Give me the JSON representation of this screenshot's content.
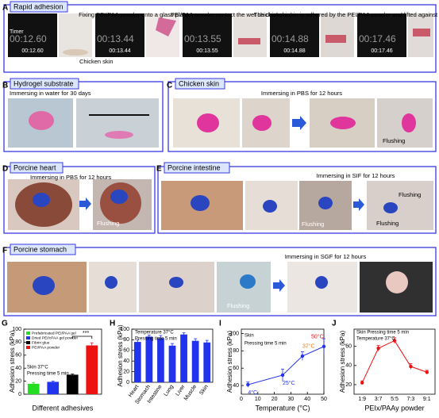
{
  "panel_a": {
    "label": "A",
    "title": "Rapid adhesion",
    "caption_1": "Fixing PEI/PAA powder onto a glass plate",
    "caption_2": "PEI/PAA powder contact the wet chicken skin",
    "caption_3": "The chicken skin is adhered by the PEI/PAA powder and lifted against its own weight",
    "timer_label": "Timer",
    "skin_label": "Chicken skin",
    "times": [
      "00:12.60",
      "00:13.44",
      "00:13.55",
      "00:14.88",
      "00:17.46"
    ]
  },
  "panel_b": {
    "label": "B",
    "title": "Hydrogel  substrate",
    "caption": "Immersing in water for 30 days"
  },
  "panel_c": {
    "label": "C",
    "title": "Chicken skin",
    "caption": "Immersing in PBS for 12 hours",
    "flushing": "Flushing"
  },
  "panel_d": {
    "label": "D",
    "title": "Porcine heart",
    "caption": "Immersing in PBS for 12 hours",
    "flushing": "Flushing"
  },
  "panel_e": {
    "label": "E",
    "title": "Porcine intestine",
    "caption": "Immersing in SIF for 12 hours",
    "flushing": [
      "Flushing",
      "Flushing",
      "Flushing"
    ]
  },
  "panel_f": {
    "label": "F",
    "title": "Porcine stomach",
    "caption": "Immersing in SGF for 12 hours",
    "flushing": "Flushing"
  },
  "chart_data": [
    {
      "type": "bar",
      "label": "G",
      "ylabel": "Adhesion stress (kPa)",
      "xlabel": "Different adhesives",
      "legend": [
        "Prefabricated PEI/PAA gel",
        "Dried PEI/cPAA gel powder",
        "Fibrin glue",
        "PEI/PAA powder"
      ],
      "colors": [
        "#22dd22",
        "#2233ee",
        "#000000",
        "#ee1111"
      ],
      "values": [
        16,
        19,
        30,
        75
      ],
      "errors": [
        2,
        1,
        1,
        4
      ],
      "ylim": [
        0,
        100
      ],
      "yticks": [
        0,
        20,
        40,
        60,
        80,
        100
      ],
      "annotations": [
        "Skin   37°C",
        "Pressing time 5 min",
        "***"
      ]
    },
    {
      "type": "bar",
      "label": "H",
      "ylabel": "Adhesion stress (kPa)",
      "categories": [
        "Heart",
        "Stomach",
        "Intestine",
        "Lung",
        "Liver",
        "Muscle",
        "Skin"
      ],
      "values": [
        76,
        86,
        83,
        69,
        90,
        78,
        75
      ],
      "errors": [
        4,
        3,
        5,
        4,
        3,
        4,
        4
      ],
      "color": "#2233ee",
      "ylim": [
        0,
        100
      ],
      "yticks": [
        0,
        20,
        40,
        60,
        80,
        100
      ],
      "annotations": [
        "Temperature 37°C",
        "Pressing time 5 min"
      ]
    },
    {
      "type": "line",
      "label": "I",
      "ylabel": "Adhesion stress (kPa)",
      "xlabel": "Temperature (°C)",
      "x": [
        4,
        25,
        37,
        50
      ],
      "values": [
        41,
        52,
        74,
        85
      ],
      "errors": [
        3,
        7,
        5,
        9
      ],
      "color": "#2233ee",
      "point_labels": [
        "4°C",
        "25°C",
        "37°C",
        "50°C"
      ],
      "point_label_colors": [
        "#2233ee",
        "#2233ee",
        "#ee7711",
        "#ee1111"
      ],
      "xlim": [
        0,
        50
      ],
      "xticks": [
        0,
        10,
        20,
        30,
        40,
        50
      ],
      "ylim": [
        30,
        105
      ],
      "yticks": [
        40,
        60,
        80,
        100
      ],
      "annotations": [
        "Skin",
        "Pressing time 5 min"
      ]
    },
    {
      "type": "line",
      "label": "J",
      "ylabel": "Adhesion stress (kPa)",
      "xlabel": "PEIx/PAAy powder",
      "categories": [
        "1:9",
        "3:7",
        "5:5",
        "7:3",
        "9:1"
      ],
      "values": [
        22,
        58,
        66,
        39,
        33
      ],
      "errors": [
        2,
        3,
        3,
        3,
        2
      ],
      "color": "#ee1111",
      "ylim": [
        10,
        78
      ],
      "yticks": [
        20,
        40,
        60
      ],
      "annotations": [
        "Skin  Pressing time 5 min",
        "Temperature 37°C"
      ]
    }
  ]
}
